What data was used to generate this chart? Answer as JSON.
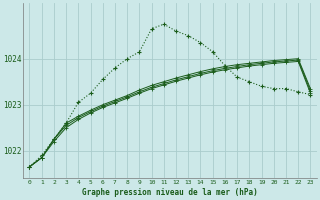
{
  "background_color": "#cce8e8",
  "grid_color": "#aacccc",
  "line_color": "#1a5c1a",
  "title": "Graphe pression niveau de la mer (hPa)",
  "hours": [
    0,
    1,
    2,
    3,
    4,
    5,
    6,
    7,
    8,
    9,
    10,
    11,
    12,
    13,
    14,
    15,
    16,
    17,
    18,
    19,
    20,
    21,
    22,
    23
  ],
  "ylim": [
    1021.4,
    1025.2
  ],
  "yticks": [
    1022,
    1023,
    1024
  ],
  "series_dotted": [
    1021.65,
    1021.9,
    1022.25,
    1022.6,
    1023.05,
    1023.25,
    1023.55,
    1023.8,
    1024.0,
    1024.15,
    1024.65,
    1024.75,
    1024.6,
    1024.5,
    1024.35,
    1024.15,
    1023.85,
    1023.6,
    1023.5,
    1023.4,
    1023.35,
    1023.35,
    1023.28,
    1023.22
  ],
  "series_solid1": [
    1021.65,
    1021.85,
    1022.25,
    1022.6,
    1022.75,
    1022.88,
    1023.0,
    1023.1,
    1023.2,
    1023.32,
    1023.42,
    1023.5,
    1023.58,
    1023.65,
    1023.72,
    1023.78,
    1023.83,
    1023.87,
    1023.9,
    1023.93,
    1023.96,
    1023.98,
    1024.0,
    1023.35
  ],
  "series_solid2": [
    1021.65,
    1021.85,
    1022.25,
    1022.55,
    1022.72,
    1022.85,
    1022.97,
    1023.07,
    1023.17,
    1023.28,
    1023.38,
    1023.46,
    1023.54,
    1023.61,
    1023.68,
    1023.74,
    1023.79,
    1023.83,
    1023.87,
    1023.9,
    1023.93,
    1023.95,
    1023.97,
    1023.3
  ],
  "series_solid3": [
    1021.65,
    1021.85,
    1022.2,
    1022.5,
    1022.68,
    1022.82,
    1022.94,
    1023.04,
    1023.14,
    1023.25,
    1023.35,
    1023.43,
    1023.51,
    1023.58,
    1023.65,
    1023.71,
    1023.76,
    1023.8,
    1023.84,
    1023.87,
    1023.9,
    1023.92,
    1023.94,
    1023.25
  ]
}
